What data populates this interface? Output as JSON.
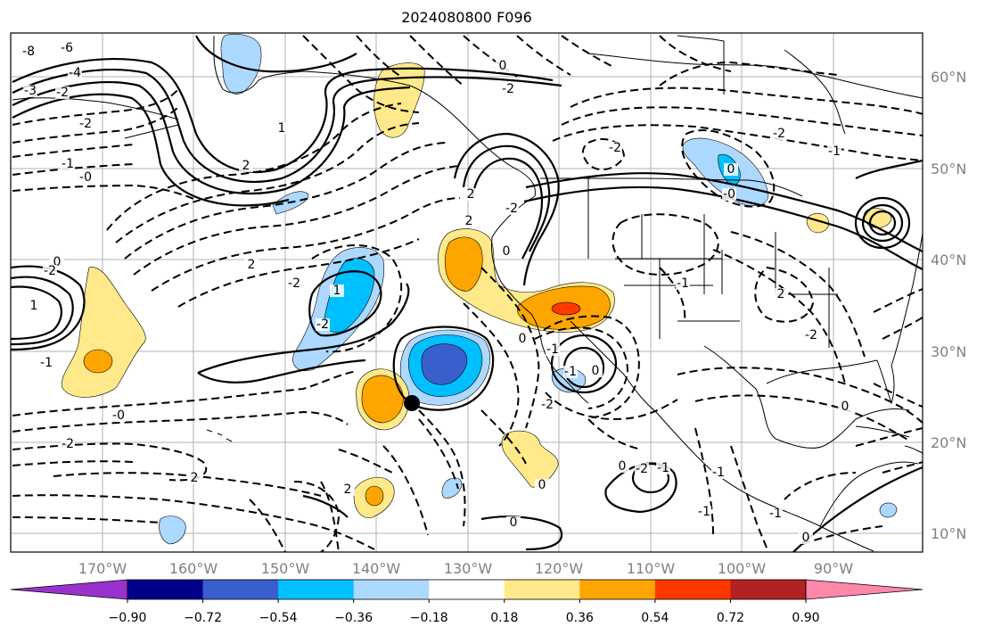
{
  "title": "2024080800 F096",
  "map": {
    "lon_ticks": [
      "170°W",
      "160°W",
      "150°W",
      "140°W",
      "130°W",
      "120°W",
      "110°W",
      "100°W",
      "90°W"
    ],
    "lat_ticks": [
      "60°N",
      "50°N",
      "40°N",
      "30°N",
      "20°N",
      "10°N"
    ],
    "contour_labels": [
      "-8",
      "-6",
      "-4",
      "-3",
      "-2",
      "-2",
      "-1",
      "-0",
      "0",
      "-2",
      "-1",
      "1",
      "-0",
      "-2",
      "2",
      "2",
      "2",
      "-2",
      "-2",
      "1",
      "-1",
      "0",
      "-1",
      "0",
      "-2",
      "-2",
      "0",
      "-2",
      "0",
      "-1",
      "-1",
      "2",
      "-2",
      "2",
      "2",
      "-2",
      "0",
      "-0",
      "-1",
      "-1",
      "0",
      "-1",
      "0",
      "0",
      "-1",
      "0",
      "1",
      "2",
      "0",
      "-2",
      "-2"
    ],
    "marker": "black dot"
  },
  "colorbar": {
    "labels": [
      "−0.90",
      "−0.72",
      "−0.54",
      "−0.36",
      "−0.18",
      "0.18",
      "0.36",
      "0.54",
      "0.72",
      "0.90"
    ],
    "colors": [
      "#9932cc",
      "#00008b",
      "#3a5fcd",
      "#00bfff",
      "#add8ff",
      "#ffffff",
      "#ffe98a",
      "#ffa500",
      "#ff3800",
      "#b22222",
      "#ff88aa"
    ]
  },
  "chart_data": {
    "type": "contour_map",
    "title": "2024080800 F096",
    "lon_range": [
      -180,
      -80
    ],
    "lat_range": [
      8,
      65
    ],
    "levels": [
      -0.9,
      -0.72,
      -0.54,
      -0.36,
      -0.18,
      0.18,
      0.36,
      0.54,
      0.72,
      0.9
    ]
  }
}
